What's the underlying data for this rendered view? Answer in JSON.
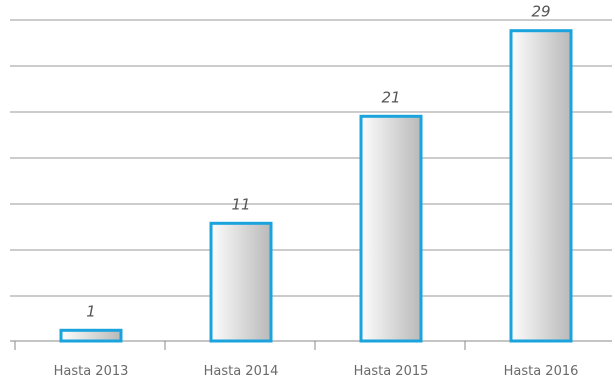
{
  "chart_data": {
    "type": "bar",
    "categories": [
      "Hasta 2013",
      "Hasta 2014",
      "Hasta 2015",
      "Hasta 2016"
    ],
    "values": [
      1,
      11,
      21,
      29
    ],
    "value_labels": [
      "1",
      "11",
      "21",
      "29"
    ],
    "title": "",
    "xlabel": "",
    "ylabel": "",
    "ylim": [
      0,
      30
    ],
    "grid": true,
    "gridline_count": 7,
    "legend": "none",
    "colors": {
      "bar_fill_start": "#fdfdfd",
      "bar_fill_end": "#b9b9b9",
      "bar_stroke": "#1aa3dc",
      "grid": "#9a9a9a"
    }
  }
}
